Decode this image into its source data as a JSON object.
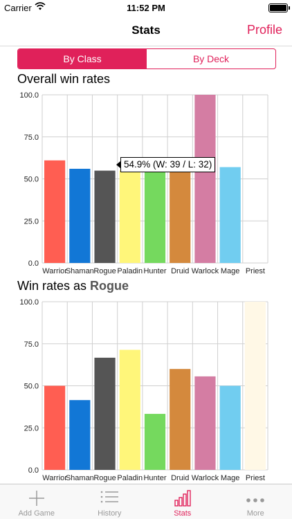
{
  "status_bar": {
    "carrier": "Carrier",
    "time": "11:52 PM"
  },
  "navbar": {
    "title": "Stats",
    "right_button": "Profile"
  },
  "segmented": {
    "options": [
      "By Class",
      "By Deck"
    ],
    "selected": 0
  },
  "section1": {
    "title": "Overall win rates"
  },
  "section2": {
    "title_prefix": "Win rates as ",
    "title_class": "Rogue"
  },
  "tooltip": {
    "text": "54.9% (W: 39 / L: 32)"
  },
  "colors": {
    "accent": "#e0215a",
    "warrior": "#ff5e52",
    "shaman": "#1277d6",
    "rogue": "#555555",
    "paladin": "#fff67a",
    "hunter": "#75d95e",
    "druid": "#d4893d",
    "warlock": "#d47da3",
    "mage": "#71cdf0",
    "priest": "#fff8e6"
  },
  "chart_data": [
    {
      "type": "bar",
      "title": "Overall win rates",
      "categories": [
        "Warrior",
        "Shaman",
        "Rogue",
        "Paladin",
        "Hunter",
        "Druid",
        "Warlock",
        "Mage",
        "Priest"
      ],
      "values": [
        61,
        56,
        54.9,
        55,
        55,
        55,
        100,
        57,
        0
      ],
      "ylim": [
        0,
        100
      ],
      "yticks": [
        "100.0",
        "75.0",
        "50.0",
        "25.0",
        "0.0"
      ],
      "grid": true
    },
    {
      "type": "bar",
      "title": "Win rates as Rogue",
      "categories": [
        "Warrior",
        "Shaman",
        "Rogue",
        "Paladin",
        "Hunter",
        "Druid",
        "Warlock",
        "Mage",
        "Priest"
      ],
      "values": [
        50,
        41.5,
        66.7,
        71.4,
        33.3,
        60,
        55.6,
        50,
        100
      ],
      "ylim": [
        0,
        100
      ],
      "yticks": [
        "100.0",
        "75.0",
        "50.0",
        "25.0",
        "0.0"
      ],
      "grid": true
    }
  ],
  "tabbar": {
    "tabs": [
      {
        "label": "Add Game",
        "icon": "plus-icon"
      },
      {
        "label": "History",
        "icon": "list-icon"
      },
      {
        "label": "Stats",
        "icon": "bar-chart-icon",
        "active": true
      },
      {
        "label": "More",
        "icon": "more-dots-icon"
      }
    ]
  }
}
